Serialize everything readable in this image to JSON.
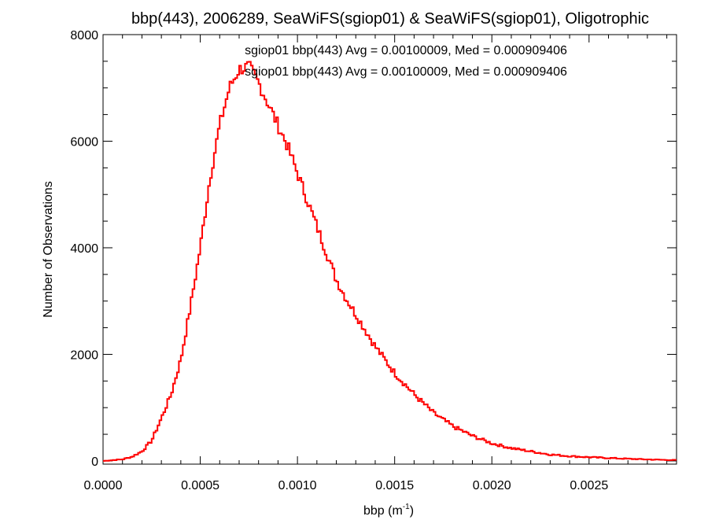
{
  "colors": {
    "series": "#ff0000",
    "text": "#000000",
    "background": "#ffffff"
  },
  "chart_data": {
    "type": "histogram",
    "title": "bbp(443), 2006289, SeaWiFS(sgiop01) & SeaWiFS(sgiop01), Oligotrophic",
    "xlabel_main": "bbp (m",
    "xlabel_sup": "-1",
    "xlabel_close": ")",
    "ylabel": "Number of Observations",
    "xlim": [
      0,
      0.00295
    ],
    "ylim": [
      -60,
      8000
    ],
    "xticks": [
      {
        "value": 0,
        "label": "0.0000"
      },
      {
        "value": 0.0005,
        "label": "0.0005"
      },
      {
        "value": 0.001,
        "label": "0.0010"
      },
      {
        "value": 0.0015,
        "label": "0.0015"
      },
      {
        "value": 0.002,
        "label": "0.0020"
      },
      {
        "value": 0.0025,
        "label": "0.0025"
      }
    ],
    "yticks": [
      {
        "value": 0,
        "label": "0"
      },
      {
        "value": 2000,
        "label": "2000"
      },
      {
        "value": 4000,
        "label": "4000"
      },
      {
        "value": 6000,
        "label": "6000"
      },
      {
        "value": 8000,
        "label": "8000"
      }
    ],
    "annotations": [
      {
        "text": "sgiop01 bbp(443) Avg = 0.00100009, Med = 0.000909406",
        "color": "#000000"
      },
      {
        "text": "sgiop01 bbp(443) Avg = 0.00100009, Med = 0.000909406",
        "color": "#ff0000"
      }
    ],
    "series": [
      {
        "color": "#ff0000",
        "points": [
          [
            0.0,
            0
          ],
          [
            0.0001,
            30
          ],
          [
            0.00015,
            80
          ],
          [
            0.0002,
            180
          ],
          [
            0.00025,
            380
          ],
          [
            0.0003,
            800
          ],
          [
            0.00035,
            1250
          ],
          [
            0.0004,
            1900
          ],
          [
            0.00045,
            2900
          ],
          [
            0.0005,
            4000
          ],
          [
            0.00055,
            5300
          ],
          [
            0.0006,
            6300
          ],
          [
            0.00065,
            7000
          ],
          [
            0.0007,
            7350
          ],
          [
            0.00075,
            7400
          ],
          [
            0.0008,
            7100
          ],
          [
            0.00085,
            6700
          ],
          [
            0.0009,
            6300
          ],
          [
            0.00095,
            5900
          ],
          [
            0.001,
            5400
          ],
          [
            0.00105,
            4900
          ],
          [
            0.0011,
            4400
          ],
          [
            0.00115,
            3900
          ],
          [
            0.0012,
            3400
          ],
          [
            0.00125,
            3050
          ],
          [
            0.0013,
            2750
          ],
          [
            0.00135,
            2450
          ],
          [
            0.0014,
            2150
          ],
          [
            0.00145,
            1900
          ],
          [
            0.0015,
            1650
          ],
          [
            0.0016,
            1250
          ],
          [
            0.0017,
            900
          ],
          [
            0.0018,
            650
          ],
          [
            0.0019,
            470
          ],
          [
            0.002,
            330
          ],
          [
            0.0021,
            240
          ],
          [
            0.0022,
            180
          ],
          [
            0.0023,
            120
          ],
          [
            0.0024,
            90
          ],
          [
            0.0025,
            70
          ],
          [
            0.0026,
            55
          ],
          [
            0.0027,
            40
          ],
          [
            0.0028,
            28
          ],
          [
            0.00295,
            15
          ]
        ]
      }
    ]
  }
}
